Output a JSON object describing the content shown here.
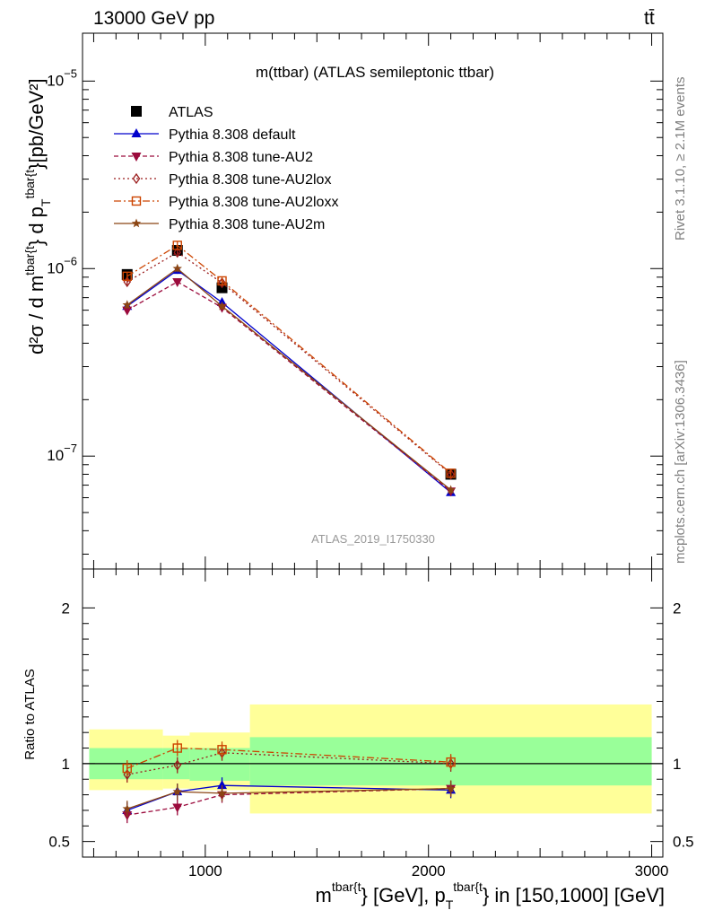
{
  "header": {
    "energy_label": "13000 GeV pp",
    "process_label": "tt̄"
  },
  "side_labels": {
    "rivet": "Rivet 3.1.10, ≥ 2.1M events",
    "mcplots": "mcplots.cern.ch [arXiv:1306.3436]"
  },
  "colors": {
    "atlas": "#000000",
    "default": "#0000cc",
    "au2": "#9b0a3c",
    "au2lox": "#9b1c1c",
    "au2loxx": "#cc4400",
    "au2m": "#8b4513",
    "band_inner": "#99ff99",
    "band_outer": "#ffff99"
  },
  "chart_data": [
    {
      "type": "line",
      "title": "m(ttbar) (ATLAS semileptonic ttbar)",
      "watermark": "ATLAS_2019_I1750330",
      "ylabel_parts": {
        "main": "d²σ / d m",
        "sup1": "tbar{t",
        "mid": "} d p",
        "sub": "T",
        "sup2": "tbar{t",
        "end": "}[pb/GeV²]"
      },
      "yscale": "log",
      "ylim": [
        2.5e-08,
        1.8e-05
      ],
      "xlim": [
        450,
        3050
      ],
      "ytick_labels": [
        {
          "base": "10",
          "exp": "−5",
          "value": 1e-05
        },
        {
          "base": "10",
          "exp": "−6",
          "value": 1e-06
        },
        {
          "base": "10",
          "exp": "−7",
          "value": 1e-07
        }
      ],
      "legend_position": "top-left",
      "series": [
        {
          "key": "atlas",
          "name": "ATLAS",
          "x": [
            650,
            875,
            1075,
            2100
          ],
          "y": [
            9.3e-07,
            1.25e-06,
            7.9e-07,
            8e-08
          ]
        },
        {
          "key": "default",
          "name": "Pythia 8.308 default",
          "x": [
            650,
            875,
            1075,
            2100
          ],
          "y": [
            6.3e-07,
            9.8e-07,
            6.6e-07,
            6.4e-08
          ]
        },
        {
          "key": "au2",
          "name": "Pythia 8.308 tune-AU2",
          "x": [
            650,
            875,
            1075,
            2100
          ],
          "y": [
            6e-07,
            8.5e-07,
            6.2e-07,
            6.5e-08
          ]
        },
        {
          "key": "au2lox",
          "name": "Pythia 8.308 tune-AU2lox",
          "x": [
            650,
            875,
            1075,
            2100
          ],
          "y": [
            8.5e-07,
            1.22e-06,
            8.4e-07,
            8e-08
          ]
        },
        {
          "key": "au2loxx",
          "name": "Pythia 8.308 tune-AU2loxx",
          "x": [
            650,
            875,
            1075,
            2100
          ],
          "y": [
            9.1e-07,
            1.33e-06,
            8.6e-07,
            8.1e-08
          ]
        },
        {
          "key": "au2m",
          "name": "Pythia 8.308 tune-AU2m",
          "x": [
            650,
            875,
            1075,
            2100
          ],
          "y": [
            6.4e-07,
            1e-06,
            6.3e-07,
            6.6e-08
          ]
        }
      ]
    },
    {
      "type": "line",
      "ylabel": "Ratio to ATLAS",
      "xlabel_parts": {
        "a": "m",
        "sup1": "tbar{t",
        "b": "} [GeV], p",
        "sub": "T",
        "sup2": "tbar{t",
        "c": "} in [150,1000] [GeV]"
      },
      "ylim": [
        0.4,
        2.25
      ],
      "xlim": [
        450,
        3050
      ],
      "xtick_labels": [
        "1000",
        "2000",
        "3000"
      ],
      "xtick_values": [
        1000,
        2000,
        3000
      ],
      "ytick_labels": [
        "0.5",
        "1",
        "2"
      ],
      "ytick_values": [
        0.5,
        1,
        2
      ],
      "bins": [
        {
          "lo": 480,
          "hi": 810,
          "inner": [
            0.9,
            1.1
          ],
          "outer": [
            0.83,
            1.22
          ]
        },
        {
          "lo": 810,
          "hi": 930,
          "inner": [
            0.9,
            1.1
          ],
          "outer": [
            0.84,
            1.18
          ]
        },
        {
          "lo": 930,
          "hi": 1200,
          "inner": [
            0.89,
            1.1
          ],
          "outer": [
            0.83,
            1.2
          ]
        },
        {
          "lo": 1200,
          "hi": 3000,
          "inner": [
            0.86,
            1.17
          ],
          "outer": [
            0.68,
            1.38
          ]
        }
      ],
      "series": [
        {
          "key": "default",
          "name": "Pythia 8.308 default",
          "x": [
            650,
            875,
            1075,
            2100
          ],
          "y": [
            0.7,
            0.82,
            0.86,
            0.83
          ]
        },
        {
          "key": "au2",
          "name": "Pythia 8.308 tune-AU2",
          "x": [
            650,
            875,
            1075,
            2100
          ],
          "y": [
            0.67,
            0.72,
            0.8,
            0.84
          ]
        },
        {
          "key": "au2lox",
          "name": "Pythia 8.308 tune-AU2lox",
          "x": [
            650,
            875,
            1075,
            2100
          ],
          "y": [
            0.93,
            0.99,
            1.07,
            1.0
          ]
        },
        {
          "key": "au2loxx",
          "name": "Pythia 8.308 tune-AU2loxx",
          "x": [
            650,
            875,
            1075,
            2100
          ],
          "y": [
            0.97,
            1.1,
            1.09,
            1.01
          ]
        },
        {
          "key": "au2m",
          "name": "Pythia 8.308 tune-AU2m",
          "x": [
            650,
            875,
            1075,
            2100
          ],
          "y": [
            0.71,
            0.82,
            0.81,
            0.84
          ]
        }
      ]
    }
  ]
}
